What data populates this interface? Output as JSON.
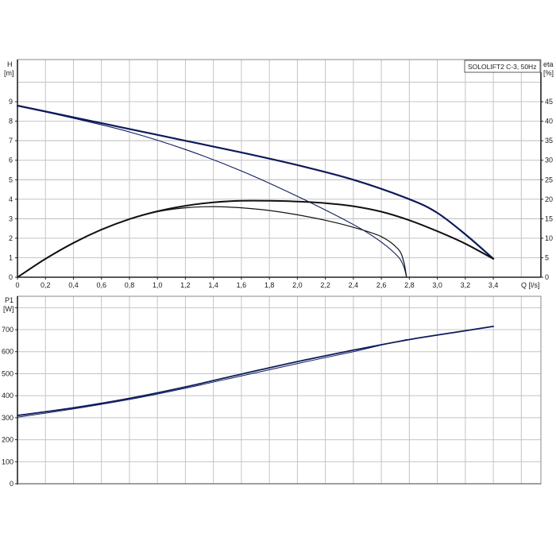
{
  "title": "SOLOLIFT2 C-3, 50Hz",
  "colors": {
    "curve_blue": "#0d1a5c",
    "curve_black": "#111111",
    "grid": "#c4c4c4",
    "axis": "#222222",
    "frame": "#8a8a8a"
  },
  "chart_data": [
    {
      "type": "line",
      "title": "SOLOLIFT2 C-3, 50Hz",
      "xlabel": "Q [l/s]",
      "ylabel": "H [m]",
      "y2label": "eta [%]",
      "xlim": [
        0,
        3.74
      ],
      "ylim": [
        0,
        10.2
      ],
      "y2lim": [
        0,
        51
      ],
      "grid": true,
      "x_ticks": [
        "0",
        "0,2",
        "0,4",
        "0,6",
        "0,8",
        "1,0",
        "1,2",
        "1,4",
        "1,6",
        "1,8",
        "2,0",
        "2,2",
        "2,4",
        "2,6",
        "2,8",
        "3,0",
        "3,2",
        "3,4"
      ],
      "y_ticks": [
        "0",
        "1",
        "2",
        "3",
        "4",
        "5",
        "6",
        "7",
        "8",
        "9"
      ],
      "y2_ticks": [
        "0",
        "5",
        "10",
        "15",
        "20",
        "25",
        "30",
        "35",
        "40",
        "45"
      ],
      "series": [
        {
          "name": "H (thick, max)",
          "axis": "left",
          "color": "#0d1a5c",
          "width": 2.2,
          "x": [
            0,
            0.4,
            0.8,
            1.2,
            1.6,
            2.0,
            2.4,
            2.8,
            3.0,
            3.2,
            3.4
          ],
          "y": [
            8.8,
            8.2,
            7.6,
            7.0,
            6.4,
            5.75,
            5.0,
            4.0,
            3.3,
            2.2,
            0.95
          ]
        },
        {
          "name": "H (thin, reduced)",
          "axis": "left",
          "color": "#0d1a5c",
          "width": 1.1,
          "x": [
            0,
            0.4,
            0.8,
            1.2,
            1.6,
            2.0,
            2.4,
            2.6,
            2.72,
            2.76,
            2.78
          ],
          "y": [
            8.8,
            8.15,
            7.45,
            6.55,
            5.45,
            4.15,
            2.7,
            1.8,
            1.05,
            0.55,
            0
          ]
        },
        {
          "name": "eta (thick, max)",
          "axis": "right",
          "color": "#111111",
          "width": 2.0,
          "x": [
            0,
            0.2,
            0.4,
            0.6,
            0.8,
            1.0,
            1.2,
            1.4,
            1.6,
            1.8,
            2.0,
            2.2,
            2.4,
            2.6,
            2.8,
            3.0,
            3.2,
            3.4
          ],
          "y": [
            0,
            4.7,
            8.8,
            12.2,
            14.9,
            16.9,
            18.3,
            19.2,
            19.6,
            19.6,
            19.4,
            19.0,
            18.2,
            16.8,
            14.6,
            11.8,
            8.6,
            4.7
          ]
        },
        {
          "name": "eta (thin, reduced)",
          "axis": "right",
          "color": "#111111",
          "width": 1.2,
          "x": [
            0,
            0.2,
            0.4,
            0.6,
            0.8,
            1.0,
            1.2,
            1.4,
            1.6,
            1.8,
            2.0,
            2.2,
            2.4,
            2.6,
            2.72,
            2.76,
            2.78
          ],
          "y": [
            0,
            4.7,
            8.8,
            12.2,
            14.9,
            16.8,
            17.8,
            18.1,
            17.8,
            17.1,
            16.0,
            14.6,
            12.8,
            10.4,
            7.2,
            4.0,
            0
          ]
        }
      ]
    },
    {
      "type": "line",
      "title": "",
      "xlabel": "Q [l/s]",
      "ylabel": "P1 [W]",
      "xlim": [
        0,
        3.74
      ],
      "ylim": [
        0,
        850
      ],
      "grid": true,
      "y_ticks": [
        "0",
        "100",
        "200",
        "300",
        "400",
        "500",
        "600",
        "700"
      ],
      "series": [
        {
          "name": "P1 (thick)",
          "color": "#0d1a5c",
          "width": 1.8,
          "x": [
            0,
            0.4,
            0.8,
            1.2,
            1.6,
            2.0,
            2.4,
            2.8,
            3.2,
            3.4
          ],
          "y": [
            310,
            345,
            388,
            440,
            498,
            555,
            607,
            655,
            695,
            715
          ]
        },
        {
          "name": "P1 (thin)",
          "color": "#0d1a5c",
          "width": 1.0,
          "x": [
            0,
            0.4,
            0.8,
            1.2,
            1.6,
            2.0,
            2.4,
            2.6,
            2.78
          ],
          "y": [
            302,
            340,
            383,
            434,
            490,
            546,
            600,
            630,
            655
          ]
        }
      ]
    }
  ],
  "labels": {
    "h_axis": "H",
    "h_unit": "[m]",
    "eta_axis": "eta",
    "eta_unit": "[%]",
    "q_axis": "Q [l/s]",
    "p1_axis": "P1",
    "p1_unit": "[W]"
  }
}
